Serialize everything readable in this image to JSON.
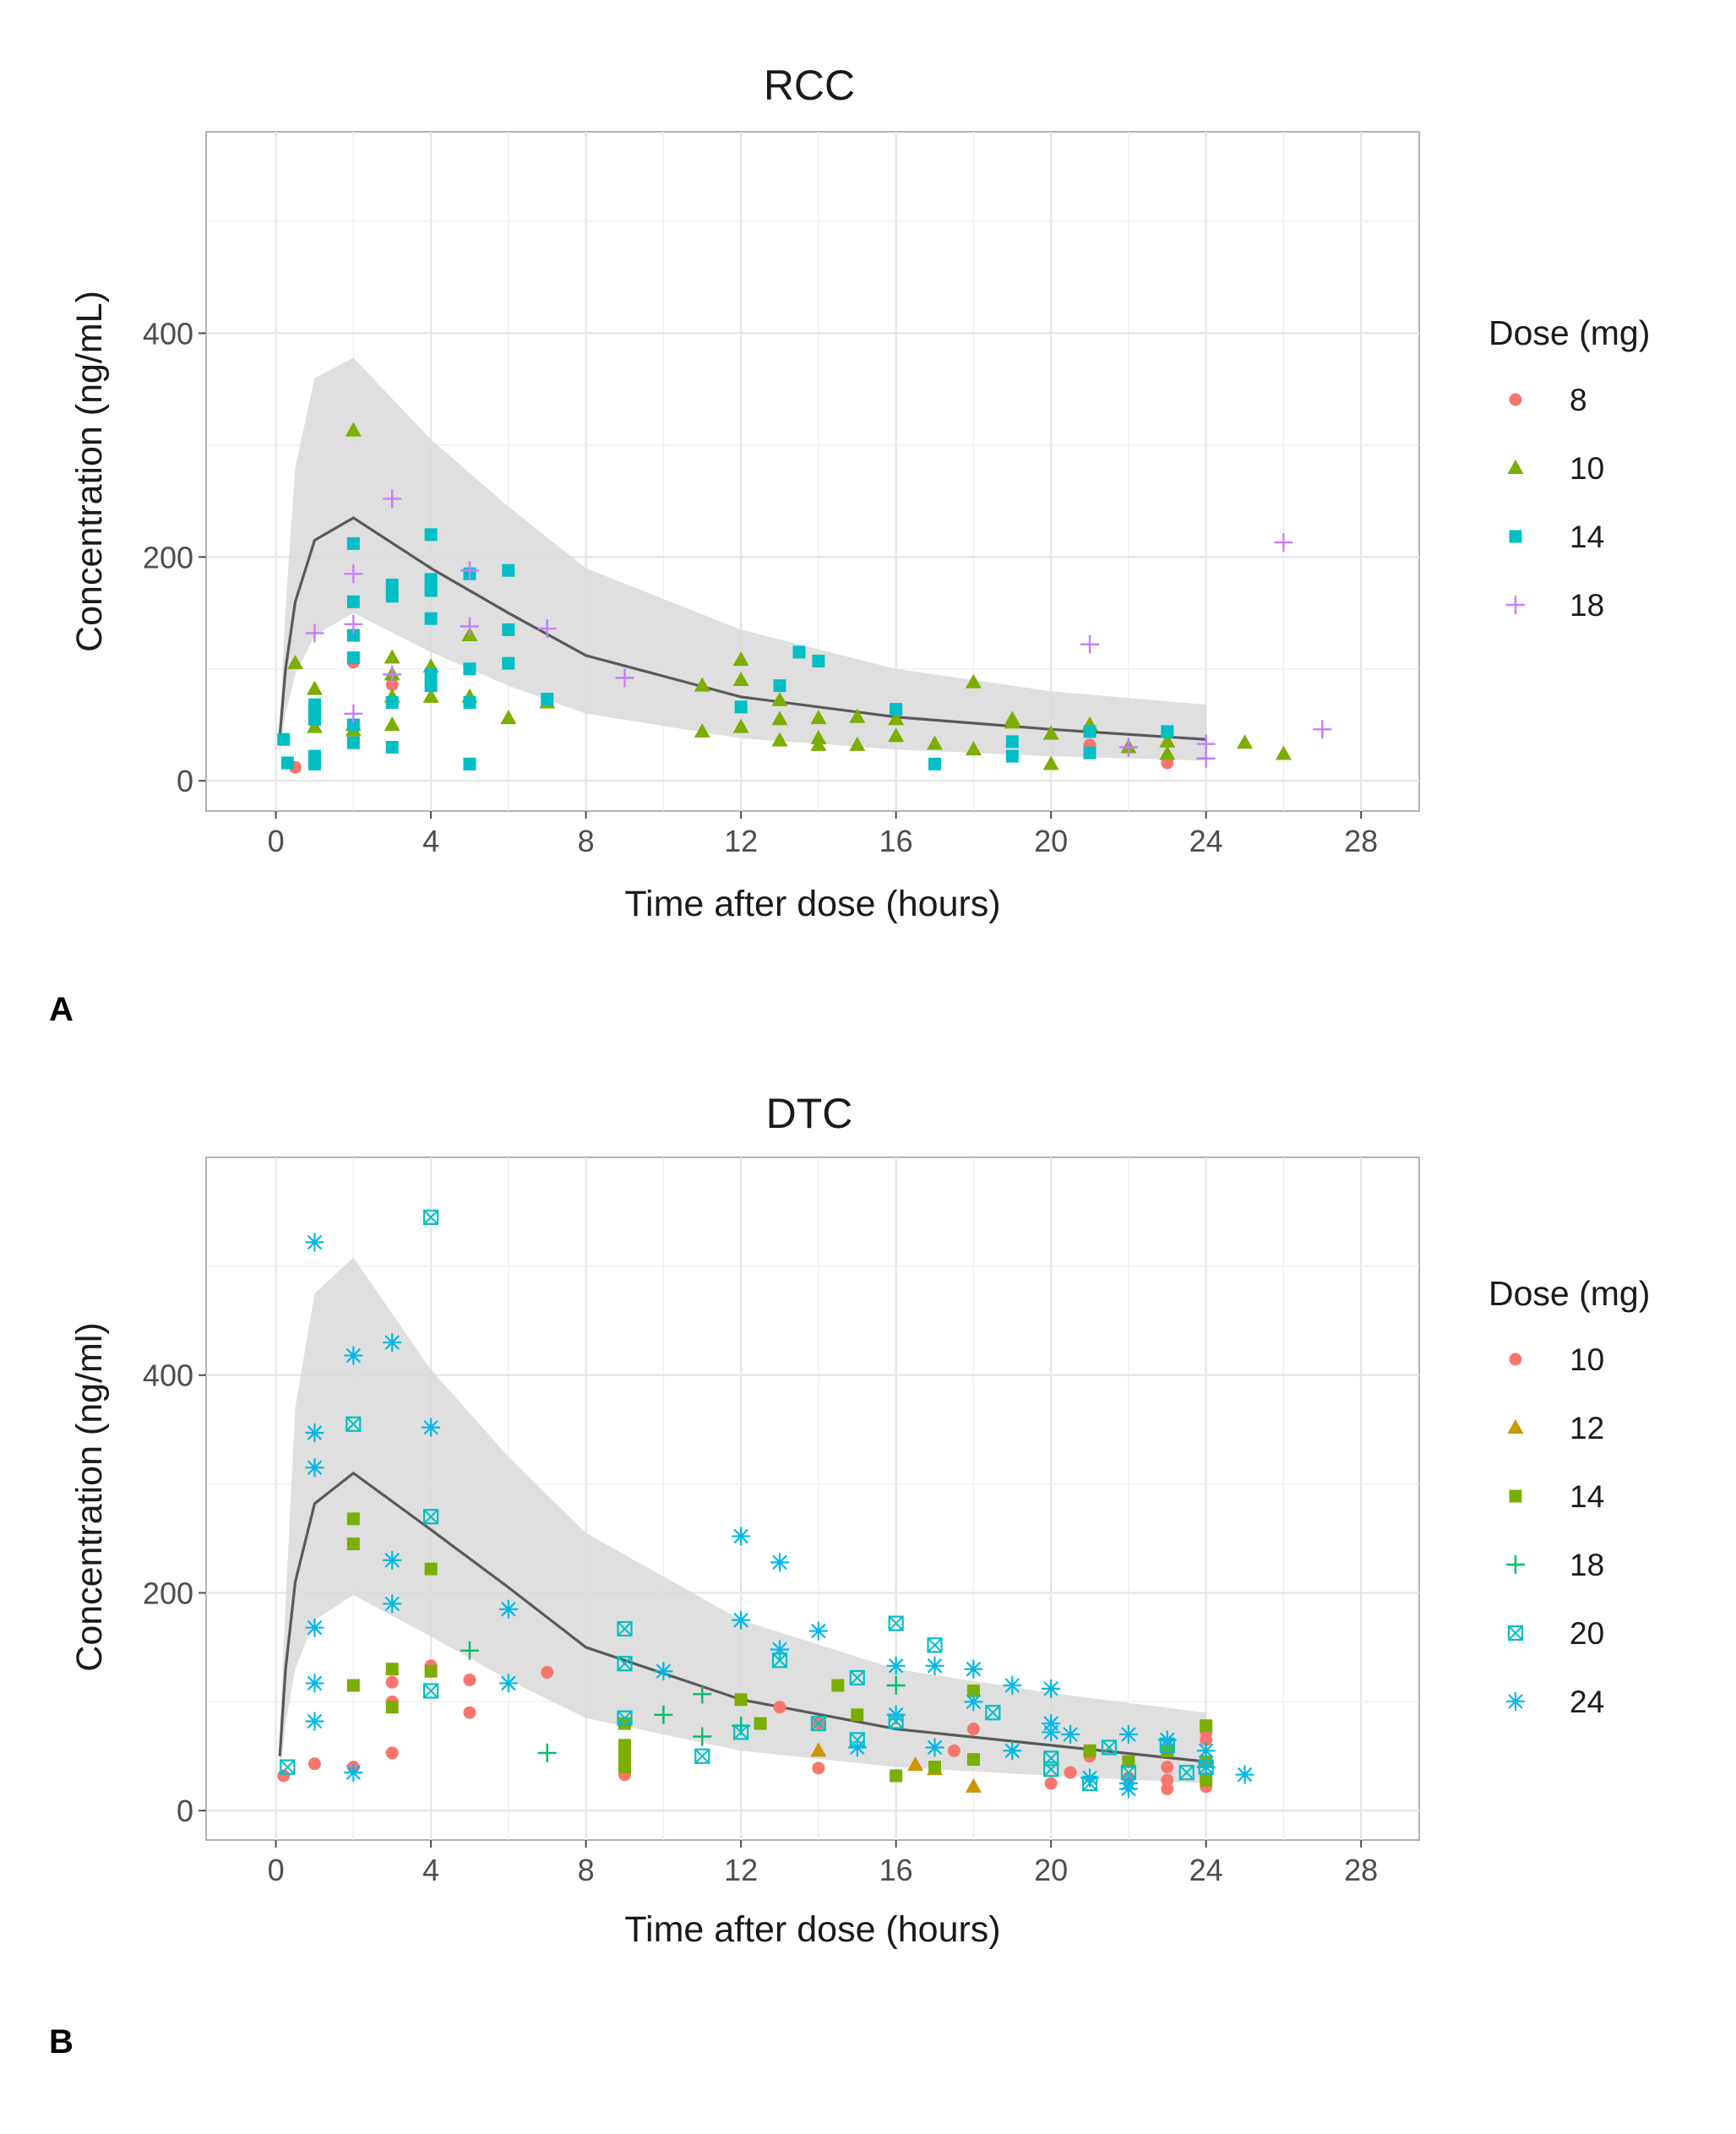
{
  "chart_data": [
    {
      "id": "A",
      "panel_label": "A",
      "type": "scatter",
      "title": "RCC",
      "xlabel": "Time after dose (hours)",
      "ylabel": "Concentration (ng/mL)",
      "xlim": [
        -1.8,
        29.5
      ],
      "ylim": [
        -27,
        580
      ],
      "xticks": [
        0,
        4,
        8,
        12,
        16,
        20,
        24,
        28
      ],
      "yticks": [
        0,
        200,
        400
      ],
      "grid": true,
      "legend": {
        "title": "Dose (mg)",
        "position": "right"
      },
      "prediction_band": {
        "x": [
          0.1,
          0.25,
          0.5,
          1,
          2,
          4,
          6,
          8,
          12,
          16,
          20,
          24
        ],
        "lower": [
          25,
          60,
          95,
          130,
          150,
          115,
          85,
          60,
          38,
          28,
          22,
          18
        ],
        "upper": [
          50,
          155,
          280,
          360,
          378,
          305,
          245,
          190,
          135,
          100,
          80,
          68
        ]
      },
      "median_line": {
        "x": [
          0.1,
          0.25,
          0.5,
          1,
          2,
          4,
          6,
          8,
          12,
          16,
          20,
          24
        ],
        "y": [
          40,
          100,
          160,
          215,
          235,
          190,
          150,
          112,
          75,
          57,
          46,
          37
        ]
      },
      "series": [
        {
          "name": "8",
          "shape": "circle",
          "color": "#F8766D",
          "x": [
            0.5,
            2,
            3,
            21,
            23
          ],
          "y": [
            12,
            106,
            86,
            32,
            16
          ]
        },
        {
          "name": "10",
          "shape": "triangle",
          "color": "#7CAE00",
          "x": [
            0.5,
            1,
            1,
            2,
            2,
            2,
            3,
            3,
            3,
            3,
            4,
            4,
            5,
            5,
            6,
            7,
            11,
            11,
            12,
            12,
            12,
            13,
            13,
            13,
            14,
            14,
            14,
            15,
            15,
            16,
            16,
            17,
            18,
            18,
            19,
            19,
            20,
            20,
            21,
            22,
            23,
            23,
            25,
            26
          ],
          "y": [
            105,
            82,
            48,
            313,
            50,
            45,
            110,
            95,
            75,
            50,
            102,
            75,
            130,
            75,
            56,
            70,
            85,
            44,
            108,
            90,
            48,
            72,
            55,
            36,
            56,
            38,
            32,
            57,
            32,
            55,
            40,
            33,
            88,
            28,
            55,
            52,
            42,
            15,
            50,
            30,
            35,
            24,
            34,
            24
          ]
        },
        {
          "name": "14",
          "shape": "square",
          "color": "#00BFC4",
          "x": [
            0.2,
            0.3,
            1,
            1,
            1,
            1,
            1,
            2,
            2,
            2,
            2,
            2,
            2,
            3,
            3,
            3,
            3,
            4,
            4,
            4,
            4,
            4,
            4,
            5,
            5,
            5,
            5,
            6,
            6,
            6,
            7,
            12,
            13,
            13.5,
            14,
            16,
            17,
            19,
            19,
            21,
            21,
            23
          ],
          "y": [
            37,
            16,
            68,
            60,
            55,
            22,
            15,
            212,
            160,
            130,
            110,
            50,
            34,
            175,
            165,
            70,
            30,
            220,
            180,
            170,
            145,
            95,
            85,
            185,
            100,
            70,
            15,
            188,
            135,
            105,
            73,
            66,
            85,
            115,
            107,
            64,
            15,
            35,
            22,
            44,
            25,
            44
          ]
        },
        {
          "name": "18",
          "shape": "plus",
          "color": "#C77CFF",
          "x": [
            1,
            2,
            2,
            2,
            3,
            3,
            5,
            5,
            7,
            9,
            21,
            22,
            24,
            24,
            26,
            27
          ],
          "y": [
            132,
            185,
            140,
            60,
            252,
            95,
            188,
            138,
            136,
            92,
            122,
            30,
            33,
            20,
            213,
            46
          ]
        }
      ]
    },
    {
      "id": "B",
      "panel_label": "B",
      "type": "scatter",
      "title": "DTC",
      "xlabel": "Time after dose (hours)",
      "ylabel": "Concentration (ng/ml)",
      "xlim": [
        -1.8,
        29.5
      ],
      "ylim": [
        -27,
        600
      ],
      "xticks": [
        0,
        4,
        8,
        12,
        16,
        20,
        24,
        28
      ],
      "yticks": [
        0,
        200,
        400
      ],
      "grid": true,
      "legend": {
        "title": "Dose (mg)",
        "position": "right"
      },
      "prediction_band": {
        "x": [
          0.1,
          0.25,
          0.5,
          1,
          2,
          4,
          6,
          8,
          12,
          16,
          20,
          24
        ],
        "lower": [
          30,
          80,
          130,
          175,
          198,
          160,
          120,
          85,
          55,
          40,
          32,
          25
        ],
        "upper": [
          70,
          190,
          370,
          475,
          508,
          405,
          325,
          255,
          175,
          130,
          108,
          90
        ]
      },
      "median_line": {
        "x": [
          0.1,
          0.25,
          0.5,
          1,
          2,
          4,
          6,
          8,
          12,
          16,
          20,
          24
        ],
        "y": [
          50,
          130,
          210,
          282,
          310,
          258,
          205,
          150,
          102,
          75,
          60,
          45
        ]
      },
      "series": [
        {
          "name": "10",
          "shape": "circle",
          "color": "#F8766D",
          "x": [
            0.2,
            1,
            2,
            3,
            3,
            3,
            4,
            5,
            5,
            7,
            9,
            13,
            14,
            14,
            17.5,
            18,
            20,
            20.5,
            21,
            22,
            22,
            23,
            23,
            23,
            24,
            24,
            24,
            24
          ],
          "y": [
            32,
            43,
            40,
            118,
            100,
            53,
            133,
            120,
            90,
            127,
            33,
            95,
            80,
            39,
            55,
            75,
            25,
            35,
            50,
            45,
            30,
            40,
            28,
            20,
            72,
            65,
            30,
            22
          ]
        },
        {
          "name": "12",
          "shape": "triangle",
          "color": "#CD9600",
          "x": [
            14,
            16.5,
            17,
            18
          ],
          "y": [
            55,
            42,
            38,
            22
          ]
        },
        {
          "name": "14",
          "shape": "square",
          "color": "#7CAE00",
          "x": [
            2,
            2,
            2,
            3,
            3,
            4,
            4,
            9,
            9,
            9,
            9,
            12,
            12.5,
            14.5,
            15,
            16,
            17,
            18,
            18,
            21,
            22,
            23,
            24,
            24,
            24
          ],
          "y": [
            268,
            245,
            115,
            130,
            95,
            222,
            128,
            80,
            60,
            50,
            40,
            102,
            80,
            115,
            88,
            32,
            40,
            110,
            47,
            55,
            45,
            55,
            78,
            45,
            28
          ]
        },
        {
          "name": "18",
          "shape": "plus",
          "color": "#00BE67",
          "x": [
            5,
            7,
            10,
            11,
            11,
            12,
            16
          ],
          "y": [
            147,
            53,
            88,
            107,
            68,
            78,
            115
          ]
        },
        {
          "name": "20",
          "shape": "squarecross",
          "color": "#00BFC4",
          "x": [
            0.3,
            2,
            4,
            4,
            4,
            9,
            9,
            9,
            11,
            12,
            13,
            14,
            15,
            15,
            16,
            16,
            17,
            18.5,
            20,
            20,
            21,
            21.5,
            22,
            23,
            23.5,
            24
          ],
          "y": [
            40,
            355,
            545,
            270,
            110,
            167,
            135,
            85,
            50,
            72,
            138,
            80,
            122,
            65,
            172,
            82,
            152,
            90,
            48,
            38,
            25,
            58,
            35,
            60,
            35,
            40
          ]
        },
        {
          "name": "24",
          "shape": "asterisk",
          "color": "#00B8E7",
          "x": [
            1,
            1,
            1,
            1,
            1,
            1,
            2,
            2,
            3,
            3,
            3,
            4,
            6,
            6,
            10,
            12,
            12,
            13,
            13,
            14,
            15,
            16,
            16,
            17,
            17,
            18,
            18,
            19,
            19,
            20,
            20,
            20,
            20.5,
            21,
            22,
            22,
            22,
            23,
            24,
            24,
            25
          ],
          "y": [
            522,
            347,
            315,
            168,
            117,
            82,
            418,
            35,
            430,
            230,
            190,
            352,
            185,
            117,
            128,
            252,
            175,
            228,
            148,
            165,
            58,
            133,
            88,
            133,
            58,
            130,
            100,
            115,
            55,
            112,
            80,
            72,
            70,
            30,
            70,
            25,
            20,
            65,
            55,
            40,
            33
          ]
        }
      ]
    }
  ]
}
